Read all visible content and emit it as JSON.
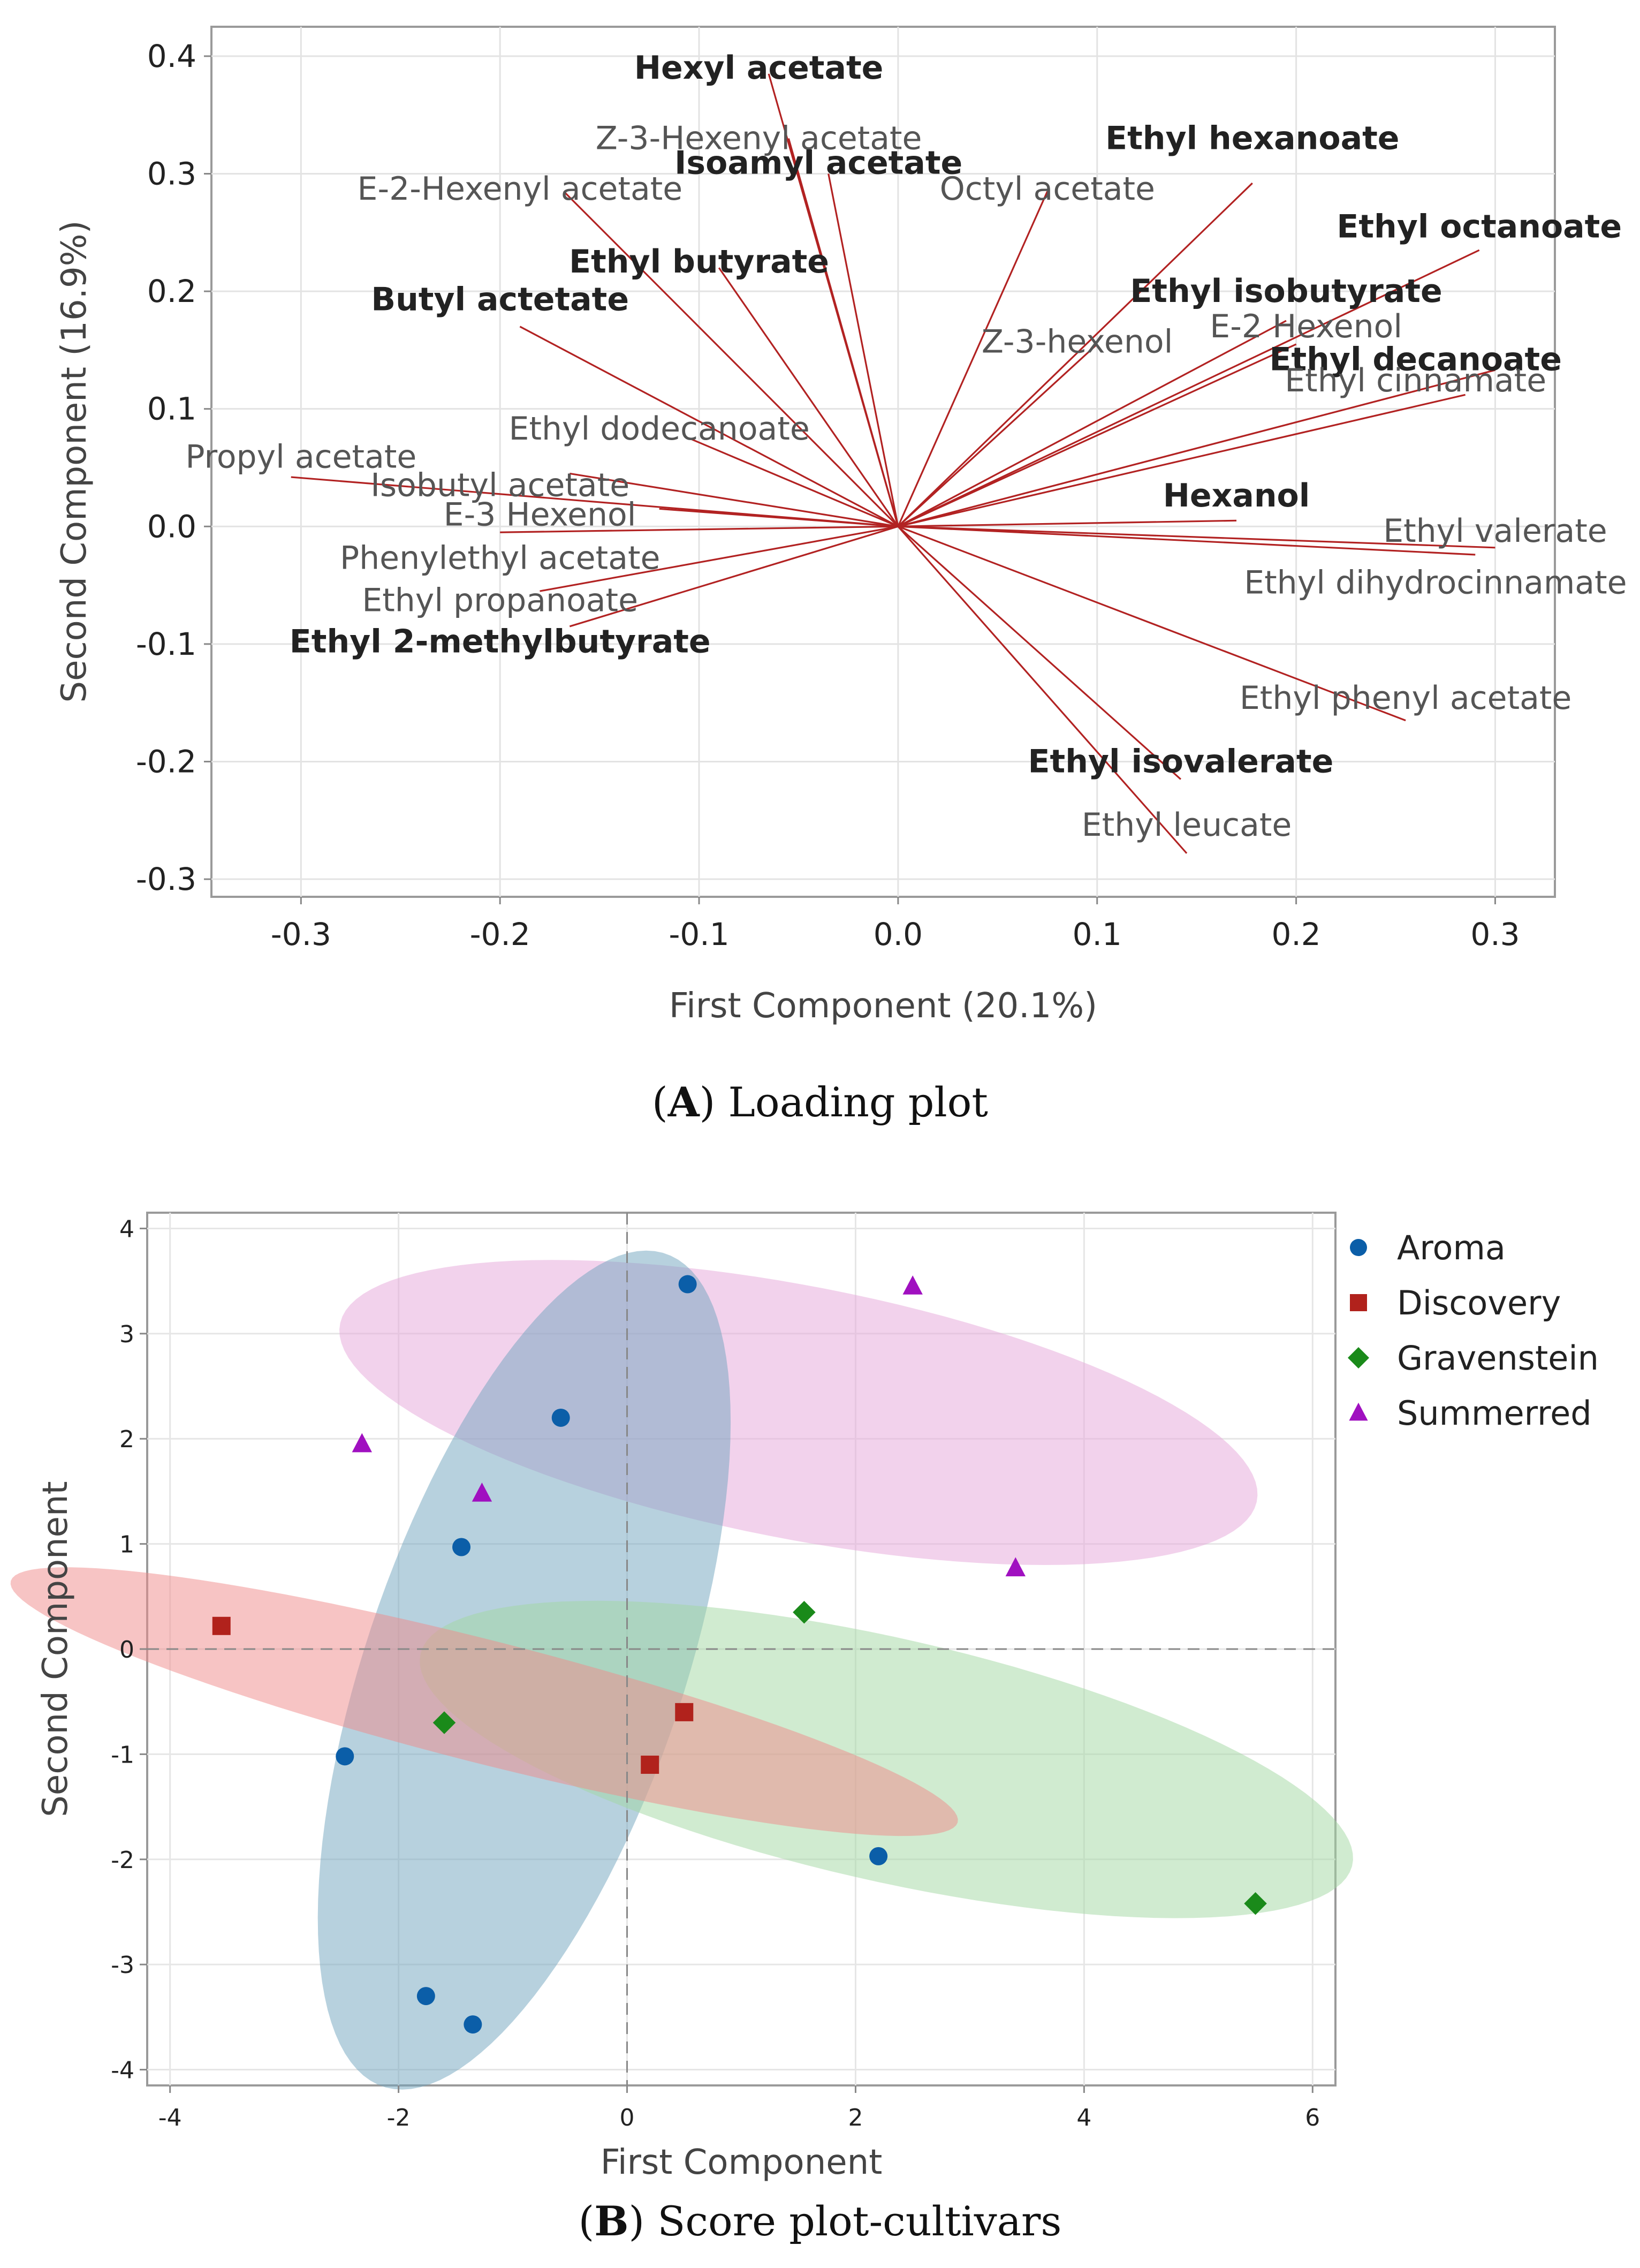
{
  "chart_data": [
    {
      "type": "scatter",
      "subtype": "loading_plot",
      "caption_letter": "A",
      "caption_text": ") Loading plot",
      "caption_open": "(",
      "xlabel": "First Component (20.1%)",
      "ylabel": "Second Component (16.9%)",
      "xlim": [
        -0.345,
        0.33
      ],
      "ylim": [
        -0.315,
        0.425
      ],
      "xticks": [
        -0.3,
        -0.2,
        -0.1,
        0.0,
        0.1,
        0.2,
        0.3
      ],
      "xtick_labels": [
        "-0.3",
        "-0.2",
        "-0.1",
        "0.0",
        "0.1",
        "0.2",
        "0.3"
      ],
      "yticks": [
        -0.3,
        -0.2,
        -0.1,
        0.0,
        0.1,
        0.2,
        0.3,
        0.4
      ],
      "ytick_labels": [
        "-0.3",
        "-0.2",
        "-0.1",
        "0.0",
        "0.1",
        "0.2",
        "0.3",
        "0.4"
      ],
      "grid": true,
      "line_color": "#b22222",
      "vectors": [
        {
          "name": "Hexyl acetate",
          "x": -0.065,
          "y": 0.385,
          "lx": -0.07,
          "ly": 0.39,
          "bold": true
        },
        {
          "name": "Z-3-Hexenyl acetate",
          "x": -0.055,
          "y": 0.33,
          "lx": -0.07,
          "ly": 0.33,
          "bold": false
        },
        {
          "name": "Isoamyl acetate",
          "x": -0.035,
          "y": 0.3,
          "lx": -0.04,
          "ly": 0.309,
          "bold": true
        },
        {
          "name": "Octyl acetate",
          "x": 0.075,
          "y": 0.285,
          "lx": 0.075,
          "ly": 0.287,
          "bold": false
        },
        {
          "name": "Ethyl hexanoate",
          "x": 0.178,
          "y": 0.292,
          "lx": 0.178,
          "ly": 0.33,
          "bold": true
        },
        {
          "name": "E-2-Hexenyl acetate",
          "x": -0.168,
          "y": 0.285,
          "lx": -0.19,
          "ly": 0.287,
          "bold": false
        },
        {
          "name": "Ethyl octanoate",
          "x": 0.292,
          "y": 0.235,
          "lx": 0.292,
          "ly": 0.255,
          "bold": true
        },
        {
          "name": "Ethyl butyrate",
          "x": -0.09,
          "y": 0.22,
          "lx": -0.1,
          "ly": 0.225,
          "bold": true
        },
        {
          "name": "Ethyl isobutyrate",
          "x": 0.195,
          "y": 0.175,
          "lx": 0.195,
          "ly": 0.2,
          "bold": true
        },
        {
          "name": "Butyl actetate",
          "x": -0.19,
          "y": 0.17,
          "lx": -0.2,
          "ly": 0.193,
          "bold": true
        },
        {
          "name": "E-2 Hexenol",
          "x": 0.2,
          "y": 0.155,
          "lx": 0.205,
          "ly": 0.17,
          "bold": false
        },
        {
          "name": "Z-3-hexenol",
          "x": 0.1,
          "y": 0.155,
          "lx": 0.09,
          "ly": 0.157,
          "bold": false
        },
        {
          "name": "Ethyl decanoate",
          "x": 0.3,
          "y": 0.133,
          "lx": 0.26,
          "ly": 0.142,
          "bold": true
        },
        {
          "name": "Ethyl cinnamate",
          "x": 0.285,
          "y": 0.112,
          "lx": 0.26,
          "ly": 0.124,
          "bold": false
        },
        {
          "name": "Ethyl dodecanoate",
          "x": -0.105,
          "y": 0.075,
          "lx": -0.12,
          "ly": 0.083,
          "bold": false
        },
        {
          "name": "Propyl acetate",
          "x": -0.305,
          "y": 0.042,
          "lx": -0.3,
          "ly": 0.059,
          "bold": false
        },
        {
          "name": "Isobutyl acetate",
          "x": -0.165,
          "y": 0.045,
          "lx": -0.2,
          "ly": 0.035,
          "bold": false
        },
        {
          "name": "E-3 Hexenol",
          "x": -0.12,
          "y": 0.015,
          "lx": -0.18,
          "ly": 0.01,
          "bold": false
        },
        {
          "name": "Hexanol",
          "x": 0.17,
          "y": 0.005,
          "lx": 0.17,
          "ly": 0.026,
          "bold": true
        },
        {
          "name": "Ethyl valerate",
          "x": 0.3,
          "y": -0.018,
          "lx": 0.3,
          "ly": -0.004,
          "bold": false
        },
        {
          "name": "Ethyl dihydrocinnamate",
          "x": 0.29,
          "y": -0.024,
          "lx": 0.27,
          "ly": -0.048,
          "bold": false
        },
        {
          "name": "Phenylethyl acetate",
          "x": -0.2,
          "y": -0.005,
          "lx": -0.2,
          "ly": -0.027,
          "bold": false
        },
        {
          "name": "Ethyl propanoate",
          "x": -0.18,
          "y": -0.055,
          "lx": -0.2,
          "ly": -0.063,
          "bold": false
        },
        {
          "name": "Ethyl 2-methylbutyrate",
          "x": -0.165,
          "y": -0.085,
          "lx": -0.2,
          "ly": -0.098,
          "bold": true
        },
        {
          "name": "Ethyl phenyl acetate",
          "x": 0.255,
          "y": -0.165,
          "lx": 0.255,
          "ly": -0.146,
          "bold": false
        },
        {
          "name": "Ethyl isovalerate",
          "x": 0.142,
          "y": -0.215,
          "lx": 0.142,
          "ly": -0.2,
          "bold": true
        },
        {
          "name": "Ethyl leucate",
          "x": 0.145,
          "y": -0.278,
          "lx": 0.145,
          "ly": -0.254,
          "bold": false
        }
      ]
    },
    {
      "type": "scatter",
      "subtype": "score_plot",
      "caption_letter": "B",
      "caption_text": ") Score plot-cultivars",
      "caption_open": "(",
      "xlabel": "First Component",
      "ylabel": "Second Component",
      "xlim": [
        -4.2,
        6.2
      ],
      "ylim": [
        -4.15,
        4.15
      ],
      "xticks": [
        -4,
        -2,
        0,
        2,
        4,
        6
      ],
      "xtick_labels": [
        "-4",
        "-2",
        "0",
        "2",
        "4",
        "6"
      ],
      "yticks": [
        -4,
        -3,
        -2,
        -1,
        0,
        1,
        2,
        3,
        4
      ],
      "ytick_labels": [
        "-4",
        "-3",
        "-2",
        "-1",
        "0",
        "1",
        "2",
        "3",
        "4"
      ],
      "grid": true,
      "legend_position": "right-top",
      "series": [
        {
          "name": "Aroma",
          "color": "#0b5ea8",
          "marker": "circle",
          "ellipse_color": "#6fa3bd",
          "ellipse": {
            "cx": -0.9,
            "cy": -0.2,
            "rx": 4.15,
            "ry": 1.4,
            "angle_deg": 73
          },
          "points": [
            [
              0.53,
              3.47
            ],
            [
              -0.58,
              2.2
            ],
            [
              -1.45,
              0.97
            ],
            [
              -2.47,
              -1.02
            ],
            [
              2.2,
              -1.97
            ],
            [
              -1.76,
              -3.3
            ],
            [
              -1.35,
              -3.57
            ]
          ]
        },
        {
          "name": "Discovery",
          "color": "#b1221c",
          "marker": "square",
          "ellipse_color": "#f08a8a",
          "ellipse": {
            "cx": -1.25,
            "cy": -0.5,
            "rx": 4.3,
            "ry": 0.58,
            "angle_deg": -15.5
          },
          "points": [
            [
              -3.55,
              0.22
            ],
            [
              0.5,
              -0.6
            ],
            [
              0.2,
              -1.1
            ]
          ]
        },
        {
          "name": "Gravenstein",
          "color": "#1a8a1a",
          "marker": "diamond",
          "ellipse_color": "#a2d8a2",
          "ellipse": {
            "cx": 2.27,
            "cy": -1.05,
            "rx": 4.2,
            "ry": 1.15,
            "angle_deg": -14
          },
          "points": [
            [
              1.55,
              0.35
            ],
            [
              -1.6,
              -0.7
            ],
            [
              5.5,
              -2.42
            ]
          ]
        },
        {
          "name": "Summerred",
          "color": "#a010c0",
          "marker": "triangle",
          "ellipse_color": "#e6a5da",
          "ellipse": {
            "cx": 1.5,
            "cy": 2.25,
            "rx": 4.1,
            "ry": 1.2,
            "angle_deg": -12
          },
          "points": [
            [
              2.5,
              3.45
            ],
            [
              -2.32,
              1.95
            ],
            [
              -1.27,
              1.48
            ],
            [
              3.4,
              0.77
            ]
          ]
        }
      ]
    }
  ]
}
